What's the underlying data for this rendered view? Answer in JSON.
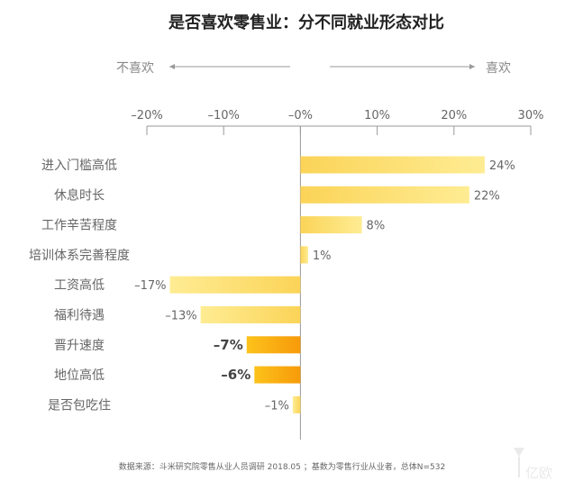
{
  "chart_data": {
    "type": "bar",
    "orientation": "horizontal",
    "title": "是否喜欢零售业：分不同就业形态对比",
    "direction_labels": {
      "left": "不喜欢",
      "right": "喜欢"
    },
    "x_ticks": [
      {
        "value": -20,
        "label": "–20%"
      },
      {
        "value": -10,
        "label": "–10%"
      },
      {
        "value": 0,
        "label": "–0%"
      },
      {
        "value": 10,
        "label": "10%"
      },
      {
        "value": 20,
        "label": "20%"
      },
      {
        "value": 30,
        "label": "30%"
      }
    ],
    "xlim": [
      -20,
      30
    ],
    "categories": [
      "进入门槛高低",
      "休息时长",
      "工作辛苦程度",
      "培训体系完善程度",
      "工资高低",
      "福利待遇",
      "晋升速度",
      "地位高低",
      "是否包吃住"
    ],
    "values": [
      24,
      22,
      8,
      1,
      -17,
      -13,
      -7,
      -6,
      -1
    ],
    "value_labels": [
      "24%",
      "22%",
      "8%",
      "1%",
      "–17%",
      "–13%",
      "–7%",
      "–6%",
      "–1%"
    ],
    "highlighted": [
      false,
      false,
      false,
      false,
      false,
      false,
      true,
      true,
      false
    ],
    "colors": {
      "bar_light": "#FEE98A",
      "bar_mid": "#FBD458",
      "bar_highlight_light": "#FCC21B",
      "bar_highlight_dark": "#F79A0A",
      "text": "#666666",
      "axis": "#999999"
    }
  },
  "source": "数据来源：斗米研究院零售从业人员调研 2018.05 ；基数为零售行业从业者，总体N=532",
  "watermark": "亿欧"
}
